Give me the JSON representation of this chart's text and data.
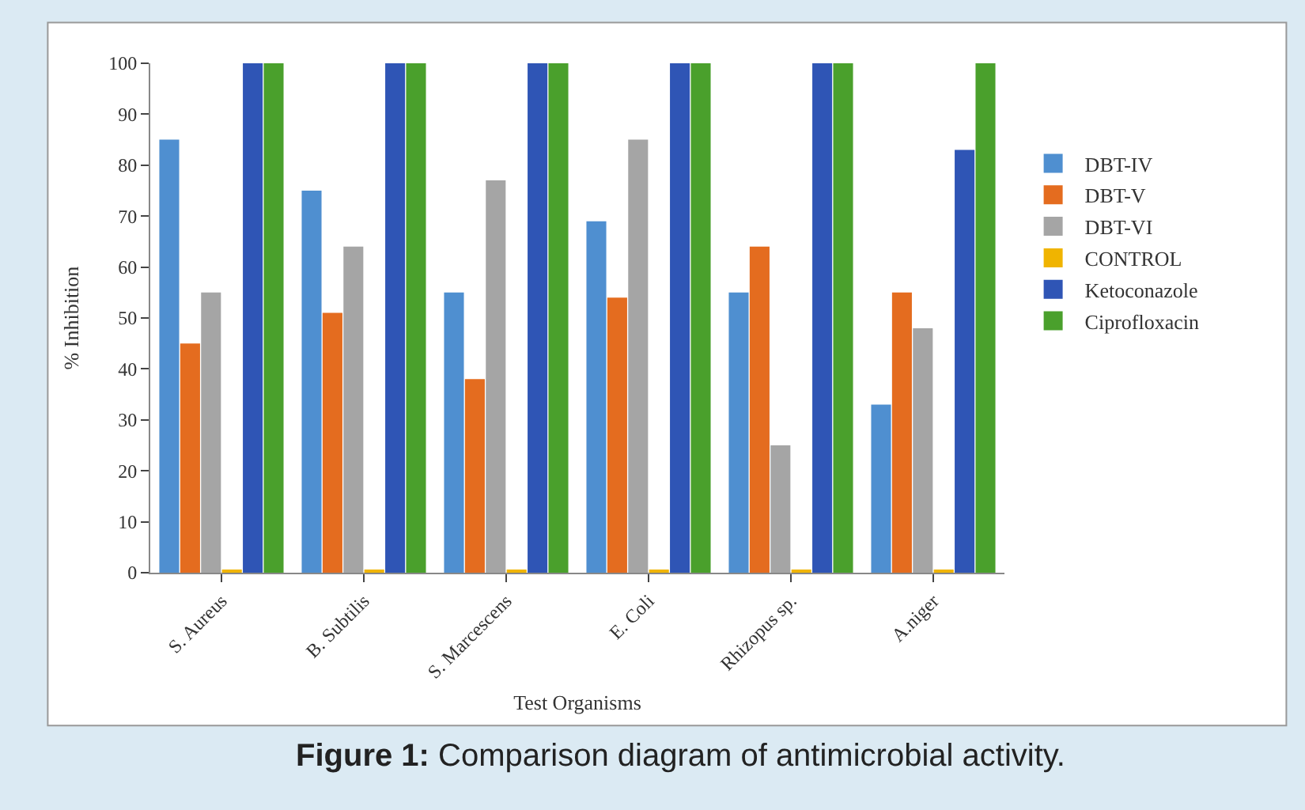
{
  "chart_data": {
    "type": "bar",
    "xlabel": "Test Organisms",
    "ylabel": "% Inhibition",
    "categories": [
      "S. Aureus",
      "B. Subtilis",
      "S. Marcescens",
      "E. Coli",
      "Rhizopus sp.",
      "A.niger"
    ],
    "series": [
      {
        "name": "DBT-IV",
        "color": "#4f8fd0",
        "values": [
          85,
          75,
          55,
          69,
          55,
          33
        ]
      },
      {
        "name": "DBT-V",
        "color": "#e46c1f",
        "values": [
          45,
          51,
          38,
          54,
          64,
          55
        ]
      },
      {
        "name": "DBT-VI",
        "color": "#a5a5a5",
        "values": [
          55,
          64,
          77,
          85,
          25,
          48
        ]
      },
      {
        "name": "CONTROL",
        "color": "#f0b400",
        "values": [
          0.5,
          0.5,
          0.5,
          0.5,
          0.5,
          0.5
        ]
      },
      {
        "name": "Ketoconazole",
        "color": "#2f55b5",
        "values": [
          100,
          100,
          100,
          100,
          100,
          83
        ]
      },
      {
        "name": "Ciprofloxacin",
        "color": "#4aa02c",
        "values": [
          100,
          100,
          100,
          100,
          100,
          100
        ]
      }
    ],
    "ylim": [
      0,
      100
    ],
    "yticks": [
      0,
      10,
      20,
      30,
      40,
      50,
      60,
      70,
      80,
      90,
      100
    ],
    "grid": false,
    "legend": "right",
    "annotations": [
      "Figure 1: Comparison diagram of antimicrobial activity."
    ]
  }
}
